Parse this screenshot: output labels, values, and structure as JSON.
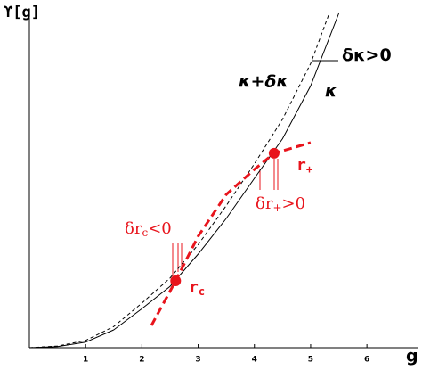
{
  "chart_data": {
    "type": "line",
    "ylabel": "ϒ[g]",
    "xlabel": "g",
    "xlim": [
      0,
      6.9
    ],
    "ylim": [
      0,
      6
    ],
    "xticks": [
      1,
      2,
      3,
      4,
      5,
      6
    ],
    "series": [
      {
        "name": "κ",
        "color": "#000000",
        "style": "solid",
        "x": [
          0,
          0.5,
          1,
          1.5,
          2,
          2.5,
          3,
          3.5,
          4,
          4.5,
          5,
          5.5
        ],
        "values": [
          0,
          0.02,
          0.1,
          0.32,
          0.7,
          1.1,
          1.68,
          2.32,
          3.04,
          3.75,
          4.7,
          6.0
        ]
      },
      {
        "name": "κ+δκ",
        "color": "#000000",
        "style": "dashed",
        "x": [
          0,
          0.5,
          1,
          1.5,
          2,
          2.5,
          3,
          3.5,
          4,
          4.5,
          5,
          5.33
        ],
        "values": [
          0,
          0.03,
          0.13,
          0.38,
          0.8,
          1.25,
          1.85,
          2.55,
          3.3,
          4.1,
          5.1,
          6.0
        ]
      },
      {
        "color": "#e8141c",
        "style": "dashed",
        "x": [
          2.17,
          2.6,
          3,
          3.5,
          4,
          4.35,
          5
        ],
        "values": [
          0.4,
          1.2,
          2.0,
          2.75,
          3.2,
          3.49,
          3.68
        ]
      }
    ],
    "points": [
      {
        "label": {
          "text": "r",
          "sub": "c"
        },
        "color": "#e8141c",
        "x": 2.6,
        "y": 1.2
      },
      {
        "label": {
          "text": "r",
          "sub": "+"
        },
        "color": "#e8141c",
        "x": 4.35,
        "y": 3.49
      }
    ],
    "annotations": [
      {
        "text": "δκ>0",
        "color": "#000000"
      },
      {
        "text": "δr",
        "sub": "+",
        "rest": ">0",
        "color": "#e8141c"
      },
      {
        "text": "δr",
        "sub": "c",
        "rest": "<0",
        "color": "#e8141c"
      }
    ]
  }
}
